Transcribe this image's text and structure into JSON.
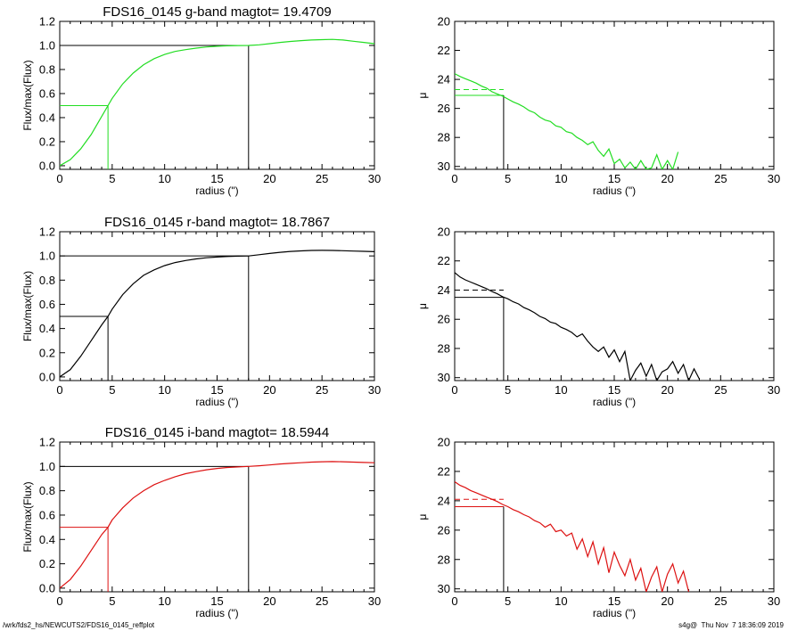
{
  "footer": {
    "left": "/wrk/fds2_hs/NEWCUTS2/FDS16_0145_reffplot",
    "right": "s4g@  Thu Nov  7 18:36:09 2019"
  },
  "chart_data": [
    {
      "id": "g-growth",
      "type": "line",
      "color": "#22dd22",
      "title": "FDS16_0145 g-band  magtot=     19.4709",
      "xlabel": "radius (\")",
      "ylabel": "Flux/max(Flux)",
      "xlim": [
        0,
        30
      ],
      "ylim": [
        -0.03,
        1.2
      ],
      "xticks": [
        "0",
        "5",
        "10",
        "15",
        "20",
        "25",
        "30"
      ],
      "yticks": [
        "0.0",
        "0.2",
        "0.4",
        "0.6",
        "0.8",
        "1.0",
        "1.2"
      ],
      "half_light_radius": 4.6,
      "total_radius": 18.0,
      "x": [
        0,
        1,
        2,
        3,
        4,
        4.6,
        5,
        6,
        7,
        8,
        9,
        10,
        11,
        12,
        13,
        14,
        15,
        16,
        17,
        18,
        19,
        20,
        21,
        22,
        23,
        24,
        25,
        26,
        27,
        28,
        29,
        30
      ],
      "y": [
        0.0,
        0.05,
        0.14,
        0.26,
        0.41,
        0.5,
        0.56,
        0.68,
        0.77,
        0.84,
        0.89,
        0.925,
        0.95,
        0.965,
        0.978,
        0.987,
        0.993,
        0.997,
        0.999,
        1.0,
        1.005,
        1.015,
        1.025,
        1.033,
        1.04,
        1.045,
        1.048,
        1.05,
        1.045,
        1.035,
        1.025,
        1.015
      ]
    },
    {
      "id": "g-profile",
      "type": "line",
      "color": "#22dd22",
      "xlabel": "radius (\")",
      "ylabel": "μ",
      "xlim": [
        0,
        30
      ],
      "ylim": [
        30.2,
        20
      ],
      "xticks": [
        "0",
        "5",
        "10",
        "15",
        "20",
        "25",
        "30"
      ],
      "yticks": [
        "20",
        "22",
        "24",
        "26",
        "28",
        "30"
      ],
      "half_light_radius": 4.6,
      "mu_effective": 25.1,
      "mu_mean_effective": 24.7,
      "x": [
        0,
        0.5,
        1,
        1.5,
        2,
        2.5,
        3,
        3.5,
        4,
        4.5,
        5,
        5.5,
        6,
        6.5,
        7,
        7.5,
        8,
        8.5,
        9,
        9.5,
        10,
        10.5,
        11,
        11.5,
        12,
        12.5,
        13,
        13.5,
        14,
        14.5,
        15,
        15.5,
        16,
        16.5,
        17,
        17.5,
        18,
        18.5,
        19,
        19.5,
        20,
        20.5,
        21
      ],
      "y": [
        23.6,
        23.8,
        23.95,
        24.1,
        24.25,
        24.45,
        24.6,
        24.85,
        25.0,
        25.15,
        25.35,
        25.55,
        25.7,
        25.9,
        26.15,
        26.3,
        26.6,
        26.8,
        26.9,
        27.2,
        27.3,
        27.6,
        27.7,
        28.0,
        28.2,
        28.5,
        28.3,
        28.9,
        29.3,
        28.8,
        29.8,
        29.5,
        30.1,
        29.7,
        30.2,
        29.6,
        30.2,
        30.1,
        29.2,
        30.2,
        29.6,
        30.2,
        29.0
      ]
    },
    {
      "id": "r-growth",
      "type": "line",
      "color": "#000000",
      "title": "FDS16_0145 r-band  magtot=     18.7867",
      "xlabel": "radius (\")",
      "ylabel": "Flux/max(Flux)",
      "xlim": [
        0,
        30
      ],
      "ylim": [
        -0.03,
        1.2
      ],
      "xticks": [
        "0",
        "5",
        "10",
        "15",
        "20",
        "25",
        "30"
      ],
      "yticks": [
        "0.0",
        "0.2",
        "0.4",
        "0.6",
        "0.8",
        "1.0",
        "1.2"
      ],
      "half_light_radius": 4.6,
      "total_radius": 18.0,
      "x": [
        0,
        1,
        2,
        3,
        4,
        4.6,
        5,
        6,
        7,
        8,
        9,
        10,
        11,
        12,
        13,
        14,
        15,
        16,
        17,
        18,
        19,
        20,
        21,
        22,
        23,
        24,
        25,
        26,
        27,
        28,
        29,
        30
      ],
      "y": [
        0.0,
        0.06,
        0.17,
        0.3,
        0.43,
        0.5,
        0.56,
        0.68,
        0.77,
        0.84,
        0.885,
        0.92,
        0.945,
        0.962,
        0.975,
        0.985,
        0.991,
        0.995,
        0.998,
        1.0,
        1.01,
        1.02,
        1.03,
        1.037,
        1.042,
        1.045,
        1.046,
        1.045,
        1.043,
        1.04,
        1.038,
        1.035
      ]
    },
    {
      "id": "r-profile",
      "type": "line",
      "color": "#000000",
      "xlabel": "radius (\")",
      "ylabel": "μ",
      "xlim": [
        0,
        30
      ],
      "ylim": [
        30.2,
        20
      ],
      "xticks": [
        "0",
        "5",
        "10",
        "15",
        "20",
        "25",
        "30"
      ],
      "yticks": [
        "20",
        "22",
        "24",
        "26",
        "28",
        "30"
      ],
      "half_light_radius": 4.6,
      "mu_effective": 24.5,
      "mu_mean_effective": 24.0,
      "x": [
        0,
        0.5,
        1,
        1.5,
        2,
        2.5,
        3,
        3.5,
        4,
        4.5,
        5,
        5.5,
        6,
        6.5,
        7,
        7.5,
        8,
        8.5,
        9,
        9.5,
        10,
        10.5,
        11,
        11.5,
        12,
        12.5,
        13,
        13.5,
        14,
        14.5,
        15,
        15.5,
        16,
        16.5,
        17,
        17.5,
        18,
        18.5,
        19,
        19.5,
        20,
        20.5,
        21,
        21.5,
        22,
        22.5,
        23
      ],
      "y": [
        22.8,
        23.1,
        23.3,
        23.45,
        23.6,
        23.75,
        23.9,
        24.1,
        24.25,
        24.45,
        24.6,
        24.8,
        24.95,
        25.2,
        25.35,
        25.55,
        25.8,
        25.95,
        26.2,
        26.3,
        26.55,
        26.7,
        26.9,
        27.2,
        27.0,
        27.5,
        27.9,
        28.2,
        27.9,
        28.6,
        28.1,
        28.9,
        28.2,
        30.2,
        29.5,
        29.0,
        29.9,
        29.1,
        30.2,
        29.6,
        29.4,
        28.9,
        29.7,
        29.1,
        30.2,
        29.4,
        30.1
      ]
    },
    {
      "id": "i-growth",
      "type": "line",
      "color": "#dd1111",
      "title": "FDS16_0145 i-band  magtot=     18.5944",
      "xlabel": "radius (\")",
      "ylabel": "Flux/max(Flux)",
      "xlim": [
        0,
        30
      ],
      "ylim": [
        -0.03,
        1.2
      ],
      "xticks": [
        "0",
        "5",
        "10",
        "15",
        "20",
        "25",
        "30"
      ],
      "yticks": [
        "0.0",
        "0.2",
        "0.4",
        "0.6",
        "0.8",
        "1.0",
        "1.2"
      ],
      "half_light_radius": 4.6,
      "total_radius": 18.0,
      "x": [
        0,
        1,
        2,
        3,
        4,
        4.6,
        5,
        6,
        7,
        8,
        9,
        10,
        11,
        12,
        13,
        14,
        15,
        16,
        17,
        18,
        19,
        20,
        21,
        22,
        23,
        24,
        25,
        26,
        27,
        28,
        29,
        30
      ],
      "y": [
        0.0,
        0.07,
        0.18,
        0.31,
        0.44,
        0.5,
        0.56,
        0.66,
        0.74,
        0.8,
        0.85,
        0.885,
        0.915,
        0.94,
        0.957,
        0.972,
        0.983,
        0.991,
        0.996,
        1.0,
        1.005,
        1.012,
        1.02,
        1.025,
        1.03,
        1.035,
        1.038,
        1.04,
        1.038,
        1.035,
        1.032,
        1.03
      ]
    },
    {
      "id": "i-profile",
      "type": "line",
      "color": "#dd1111",
      "xlabel": "radius (\")",
      "ylabel": "μ",
      "xlim": [
        0,
        30
      ],
      "ylim": [
        30.2,
        20
      ],
      "xticks": [
        "0",
        "5",
        "10",
        "15",
        "20",
        "25",
        "30"
      ],
      "yticks": [
        "20",
        "22",
        "24",
        "26",
        "28",
        "30"
      ],
      "half_light_radius": 4.6,
      "mu_effective": 24.4,
      "mu_mean_effective": 23.9,
      "x": [
        0,
        0.5,
        1,
        1.5,
        2,
        2.5,
        3,
        3.5,
        4,
        4.5,
        5,
        5.5,
        6,
        6.5,
        7,
        7.5,
        8,
        8.5,
        9,
        9.5,
        10,
        10.5,
        11,
        11.5,
        12,
        12.5,
        13,
        13.5,
        14,
        14.5,
        15,
        15.5,
        16,
        16.5,
        17,
        17.5,
        18,
        18.5,
        19,
        19.5,
        20,
        20.5,
        21,
        21.5,
        22
      ],
      "y": [
        22.7,
        22.95,
        23.1,
        23.3,
        23.45,
        23.6,
        23.75,
        23.9,
        24.05,
        24.25,
        24.4,
        24.6,
        24.75,
        24.95,
        25.1,
        25.35,
        25.5,
        25.8,
        25.6,
        26.1,
        26.0,
        26.4,
        26.2,
        27.3,
        26.6,
        27.8,
        26.8,
        28.3,
        27.2,
        28.9,
        27.5,
        28.4,
        29.1,
        28.0,
        29.4,
        28.6,
        30.2,
        29.2,
        28.5,
        30.2,
        29.0,
        28.3,
        29.6,
        28.8,
        30.2
      ]
    }
  ]
}
